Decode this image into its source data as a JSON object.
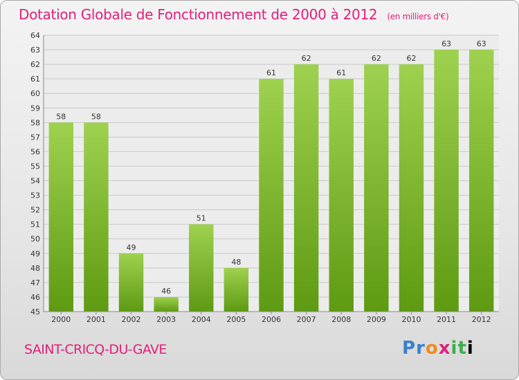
{
  "chart_data": {
    "type": "bar",
    "title": "Dotation Globale de Fonctionnement de 2000 à 2012",
    "unit_note": "(en milliers d'€)",
    "categories": [
      "2000",
      "2001",
      "2002",
      "2003",
      "2004",
      "2005",
      "2006",
      "2007",
      "2008",
      "2009",
      "2010",
      "2011",
      "2012"
    ],
    "values": [
      58,
      58,
      49,
      46,
      51,
      48,
      61,
      62,
      61,
      62,
      62,
      63,
      63
    ],
    "ylim": [
      45,
      64
    ],
    "yticks": [
      45,
      46,
      47,
      48,
      49,
      50,
      51,
      52,
      53,
      54,
      55,
      56,
      57,
      58,
      59,
      60,
      61,
      62,
      63,
      64
    ],
    "grid": true,
    "colors": {
      "bar_top": "#9ed14f",
      "bar_bottom": "#5e9a12",
      "title": "#e0207a"
    }
  },
  "footer": {
    "city": "SAINT-CRICQ-DU-GAVE",
    "logo_letters": [
      "P",
      "r",
      "o",
      "x",
      "i",
      "t",
      "i"
    ]
  }
}
